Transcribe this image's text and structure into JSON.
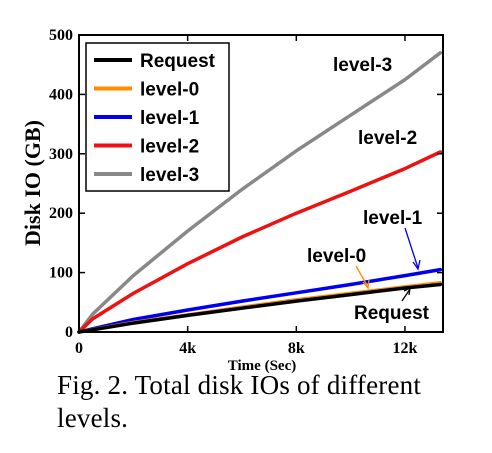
{
  "chart_data": {
    "type": "line",
    "title": "",
    "xlabel": "Time (Sec)",
    "ylabel": "Disk IO (GB)",
    "xlim": [
      0,
      13400
    ],
    "ylim": [
      0,
      500
    ],
    "x_ticks": [
      {
        "value": 0,
        "label": "0"
      },
      {
        "value": 4000,
        "label": "4k"
      },
      {
        "value": 8000,
        "label": "8k"
      },
      {
        "value": 12000,
        "label": "12k"
      }
    ],
    "y_ticks": [
      {
        "value": 0,
        "label": "0"
      },
      {
        "value": 100,
        "label": "100"
      },
      {
        "value": 200,
        "label": "200"
      },
      {
        "value": 300,
        "label": "300"
      },
      {
        "value": 400,
        "label": "400"
      },
      {
        "value": 500,
        "label": "500"
      }
    ],
    "grid": false,
    "legend_position": "top-left",
    "series": [
      {
        "name": "Request",
        "color": "#000000",
        "x": [
          0,
          2000,
          4000,
          6000,
          8000,
          10000,
          12000,
          13300
        ],
        "y": [
          0,
          15,
          28,
          40,
          52,
          63,
          74,
          80
        ]
      },
      {
        "name": "level-0",
        "color": "#ff8c00",
        "x": [
          0,
          2000,
          4000,
          6000,
          8000,
          10000,
          12000,
          13300
        ],
        "y": [
          0,
          16,
          29,
          42,
          54,
          65,
          76,
          83
        ]
      },
      {
        "name": "level-1",
        "color": "#0000ee",
        "x": [
          0,
          2000,
          4000,
          6000,
          8000,
          10000,
          12000,
          13300
        ],
        "y": [
          0,
          21,
          37,
          52,
          66,
          80,
          95,
          105
        ]
      },
      {
        "name": "level-2",
        "color": "#ee1111",
        "x": [
          0,
          500,
          2000,
          4000,
          6000,
          8000,
          10000,
          12000,
          13300
        ],
        "y": [
          0,
          22,
          65,
          115,
          160,
          200,
          237,
          275,
          303
        ]
      },
      {
        "name": "level-3",
        "color": "#888888",
        "x": [
          0,
          500,
          2000,
          4000,
          6000,
          8000,
          10000,
          12000,
          13300
        ],
        "y": [
          0,
          30,
          95,
          170,
          240,
          305,
          365,
          425,
          470
        ]
      }
    ],
    "annotations": [
      {
        "text": "level-3",
        "series": "level-3"
      },
      {
        "text": "level-2",
        "series": "level-2"
      },
      {
        "text": "level-1",
        "series": "level-1"
      },
      {
        "text": "level-0",
        "series": "level-0"
      },
      {
        "text": "Request",
        "series": "Request"
      }
    ]
  },
  "caption": {
    "text": "Fig. 2.  Total disk IOs of different levels."
  }
}
